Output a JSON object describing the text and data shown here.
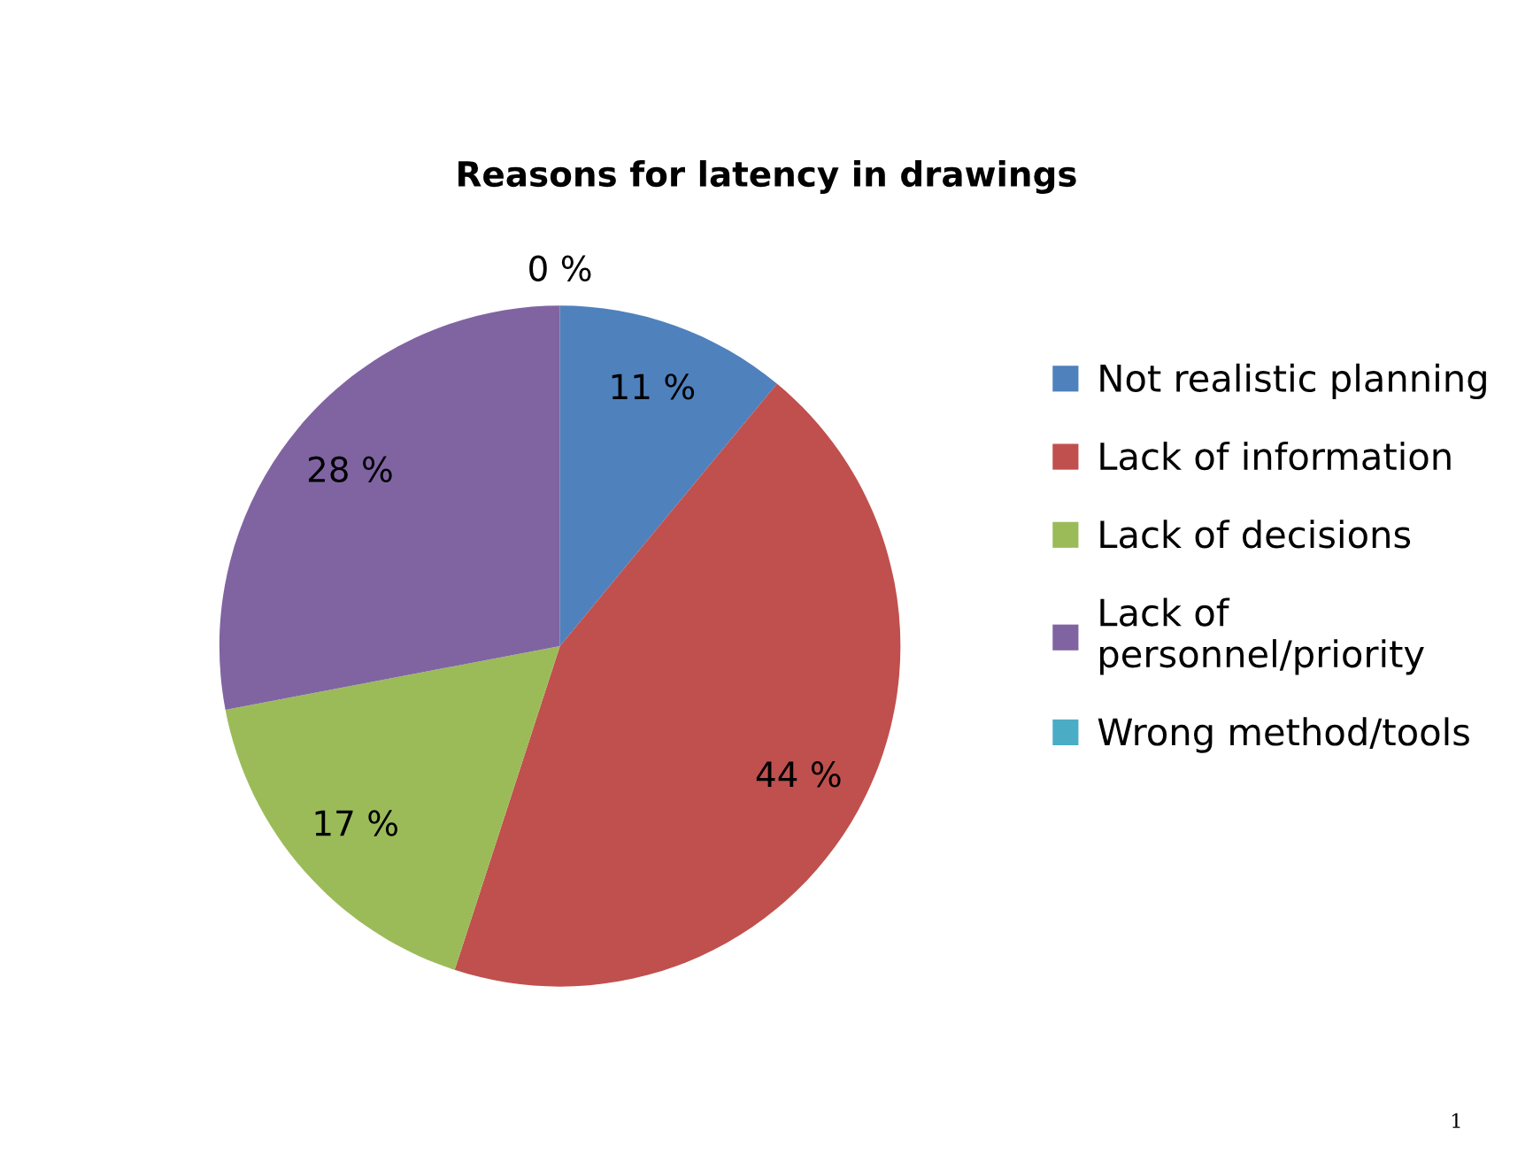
{
  "chart_data": {
    "type": "pie",
    "title": "Reasons for latency in drawings",
    "categories": [
      "Not realistic planning",
      "Lack of information",
      "Lack of decisions",
      "Lack of\npersonnel/priority",
      "Wrong method/tools"
    ],
    "values": [
      11,
      44,
      17,
      28,
      0
    ],
    "colors": [
      "#4f81bd",
      "#c0504d",
      "#9bbb59",
      "#8064a2",
      "#4bacc6"
    ],
    "value_labels": [
      "11 %",
      "44 %",
      "17 %",
      "28 %",
      "0 %"
    ],
    "legend": "right",
    "annotations": [
      "1"
    ]
  }
}
